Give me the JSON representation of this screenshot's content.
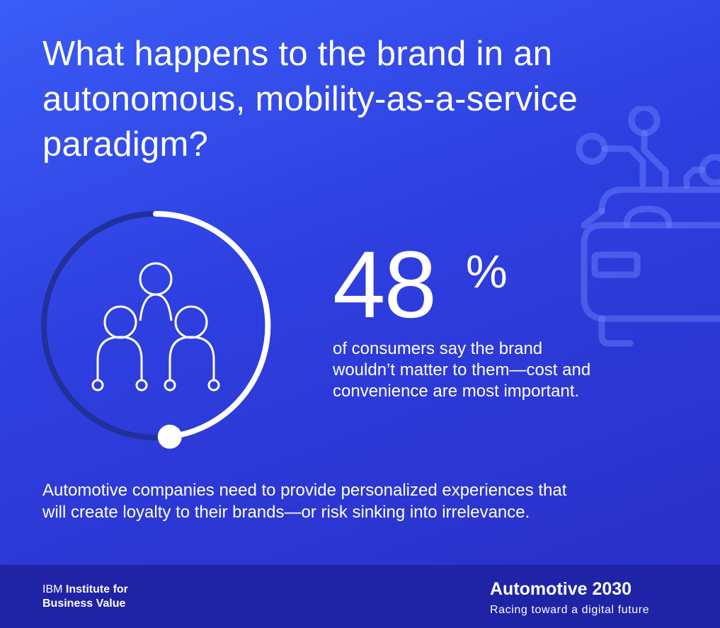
{
  "headline": {
    "line1": "What happens to the brand in an",
    "line2": "autonomous, mobility-as-a-service",
    "line3": "paradigm?"
  },
  "stat": {
    "value": "48",
    "unit": "%",
    "progress": 0.48,
    "description_line1": "of consumers say the brand",
    "description_line2": "wouldn’t matter to them—cost and",
    "description_line3": "convenience are most important."
  },
  "takeaway": {
    "line1": "Automotive companies need to provide personalized experiences that",
    "line2": "will create loyalty to their brands—or risk sinking into irrelevance."
  },
  "footer": {
    "org_prefix": "IBM",
    "org_line1": "Institute for",
    "org_line2": "Business Value",
    "series_title": "Automotive 2030",
    "series_subtitle": "Racing toward a digital future"
  },
  "icons": {
    "center": "people-network-icon",
    "background": "connected-car-icon"
  },
  "colors": {
    "background_top": "#3a5cf6",
    "background_bottom": "#2a30c8",
    "footer": "#1f23a6",
    "ring_track": "#22309a",
    "ring_progress": "#ffffff"
  }
}
